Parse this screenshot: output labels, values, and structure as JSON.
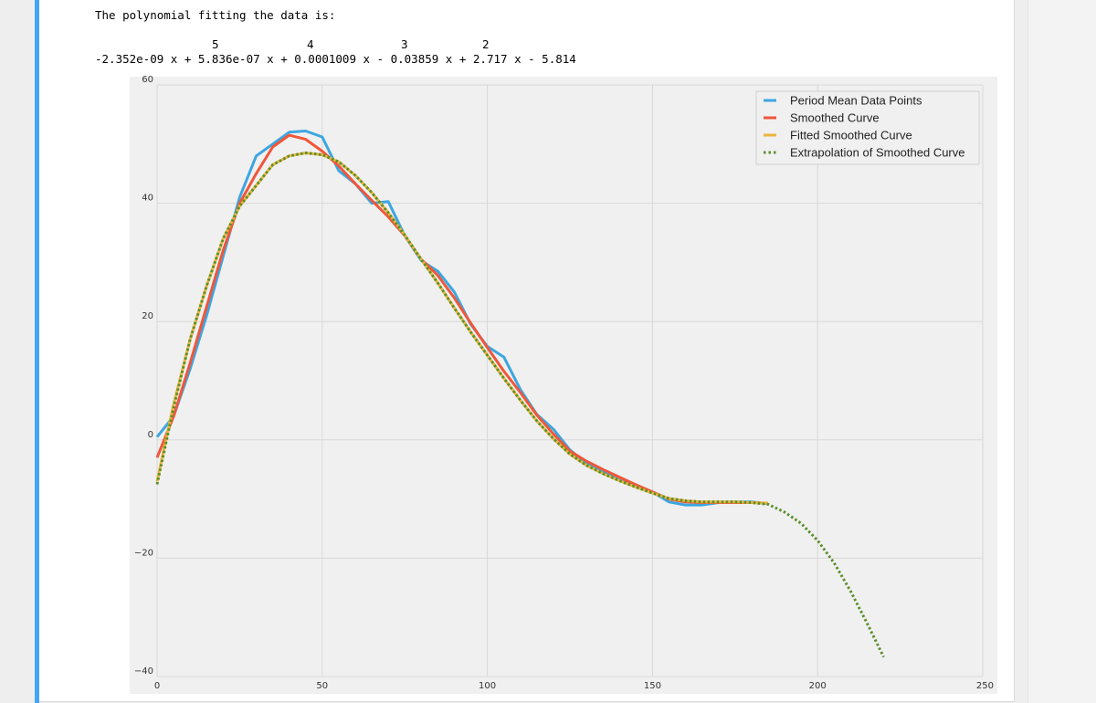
{
  "output": {
    "intro_text": "The polynomial fitting the data is:",
    "exponents": [
      "5",
      "4",
      "3",
      "2"
    ],
    "polynomial": "-2.352e-09 x + 5.836e-07 x + 0.0001009 x - 0.03859 x + 2.717 x - 5.814"
  },
  "colors": {
    "period_mean": "#3da6e0",
    "smoothed": "#f0563a",
    "fitted": "#e9b53c",
    "extrapolation": "#5a8f2c",
    "plot_bg": "#f0f0f0",
    "grid": "#d8d8d8",
    "cell_accent": "#42a5f5"
  },
  "chart_data": {
    "type": "line",
    "title": "",
    "xlabel": "",
    "ylabel": "",
    "xlim": [
      0,
      250
    ],
    "ylim": [
      -40,
      60
    ],
    "xticks": [
      0,
      50,
      100,
      150,
      200,
      250
    ],
    "yticks": [
      -40,
      -20,
      0,
      20,
      40,
      60
    ],
    "xtick_labels": [
      "0",
      "50",
      "100",
      "150",
      "200",
      "250"
    ],
    "ytick_labels": [
      "−40",
      "−20",
      "0",
      "20",
      "40",
      "60"
    ],
    "grid": true,
    "legend_position": "top-right",
    "series": [
      {
        "name": "Period Mean Data Points",
        "style": "solid",
        "x": [
          0,
          5,
          10,
          15,
          20,
          25,
          30,
          35,
          40,
          45,
          50,
          55,
          60,
          65,
          70,
          75,
          80,
          85,
          90,
          95,
          100,
          105,
          110,
          115,
          120,
          125,
          130,
          135,
          140,
          145,
          150,
          155,
          160,
          165,
          170,
          175,
          180,
          185
        ],
        "y": [
          0.5,
          4,
          12,
          21,
          31,
          41,
          48,
          50,
          52,
          52.2,
          51.2,
          45.5,
          43.3,
          40,
          40.3,
          34.5,
          30.3,
          28.5,
          25,
          19.5,
          15.8,
          14,
          8.5,
          4.3,
          1.8,
          -1.7,
          -4,
          -5.4,
          -6.8,
          -7.9,
          -8.8,
          -10.5,
          -11,
          -11,
          -10.6,
          -10.5,
          -10.5,
          -10.8
        ],
        "color_key": "period_mean"
      },
      {
        "name": "Smoothed Curve",
        "style": "solid",
        "x": [
          0,
          5,
          10,
          15,
          20,
          25,
          30,
          35,
          40,
          45,
          50,
          55,
          60,
          65,
          70,
          75,
          80,
          85,
          90,
          95,
          100,
          105,
          110,
          115,
          120,
          125,
          130,
          135,
          140,
          145,
          150,
          155,
          160,
          165,
          170,
          175,
          180,
          185
        ],
        "y": [
          -3,
          4,
          13,
          22.5,
          32,
          40,
          45,
          49.5,
          51.5,
          50.8,
          48.8,
          46.3,
          43.3,
          40.5,
          37.7,
          34.5,
          30.5,
          27.8,
          24,
          19.7,
          15.6,
          11.6,
          8,
          4.2,
          1,
          -1.9,
          -3.6,
          -5,
          -6.3,
          -7.6,
          -8.8,
          -10,
          -10.5,
          -10.6,
          -10.6,
          -10.6,
          -10.6,
          -10.7
        ],
        "color_key": "smoothed"
      },
      {
        "name": "Fitted Smoothed Curve",
        "style": "solid",
        "x": [
          0,
          5,
          10,
          15,
          20,
          25,
          30,
          35,
          40,
          45,
          50,
          55,
          60,
          65,
          70,
          75,
          80,
          85,
          90,
          95,
          100,
          105,
          110,
          115,
          120,
          125,
          130,
          135,
          140,
          145,
          150,
          155,
          160,
          165,
          170,
          175,
          180,
          185
        ],
        "y": [
          -7,
          6,
          17,
          26,
          34,
          39.5,
          43,
          46.5,
          48,
          48.5,
          48.2,
          47,
          44.7,
          41.8,
          38.4,
          34.6,
          30.5,
          26.5,
          22.3,
          18.2,
          14.3,
          10.4,
          6.7,
          3.2,
          0.2,
          -2.4,
          -4.3,
          -5.7,
          -6.9,
          -8,
          -9,
          -9.9,
          -10.3,
          -10.5,
          -10.5,
          -10.5,
          -10.6,
          -10.7
        ],
        "color_key": "fitted"
      },
      {
        "name": "Extrapolation of Smoothed Curve",
        "style": "dotted",
        "x": [
          0,
          5,
          10,
          15,
          20,
          25,
          30,
          35,
          40,
          45,
          50,
          55,
          60,
          65,
          70,
          75,
          80,
          85,
          90,
          95,
          100,
          105,
          110,
          115,
          120,
          125,
          130,
          135,
          140,
          145,
          150,
          155,
          160,
          165,
          170,
          175,
          180,
          185,
          190,
          195,
          200,
          205,
          210,
          215,
          220
        ],
        "y": [
          -7.5,
          5.5,
          17,
          26,
          34,
          39.5,
          43,
          46.5,
          48,
          48.5,
          48.2,
          47,
          44.7,
          41.8,
          38.4,
          34.6,
          30.5,
          26.5,
          22.3,
          18.2,
          14.3,
          10.4,
          6.7,
          3.2,
          0.2,
          -2.4,
          -4.3,
          -5.7,
          -6.9,
          -8,
          -9,
          -9.9,
          -10.3,
          -10.5,
          -10.5,
          -10.5,
          -10.6,
          -10.9,
          -12.2,
          -14.1,
          -17,
          -20.8,
          -25.6,
          -31,
          -36.7
        ],
        "color_key": "extrapolation"
      }
    ]
  }
}
